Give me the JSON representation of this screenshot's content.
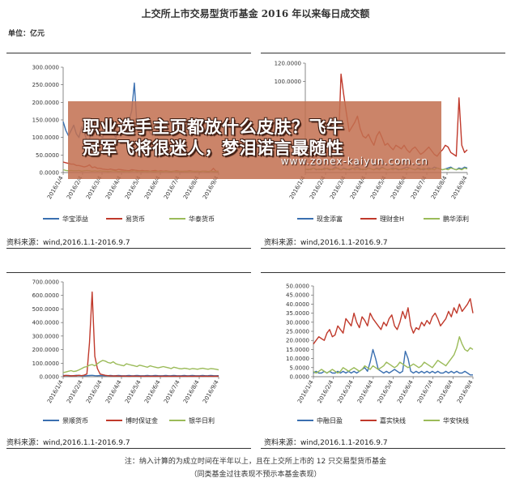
{
  "header": {
    "title": "上交所上市交易型货币基金 2016 年以来每日成交额",
    "unit": "单位：亿元"
  },
  "banner": {
    "line1": "职业选手主页都放什么皮肤？飞牛",
    "line2": "冠军飞将很迷人，梦泪诺言最随性",
    "url": "www.zonex-kaiyun.com.cn"
  },
  "source_text": "资料来源：wind,2016.1.1-2016.9.7",
  "footer": {
    "note1": "注：纳入计算的为成立时间在半年以上，且在上交所上市的 12 只交易型货币基金",
    "note2": "（同类基金过往表现不预示本基金表现）"
  },
  "colors": {
    "blue": "#3a6fb0",
    "red": "#c0392b",
    "green": "#9bbb59"
  },
  "chart_data": [
    {
      "type": "line",
      "x_ticks": [
        "2016/1/4",
        "2016/2/4",
        "2016/3/4",
        "2016/4/4",
        "2016/5/4",
        "2016/6/4",
        "2016/7/4",
        "2016/8/4",
        "2016/9/4"
      ],
      "y_ticks": [
        "0.0000",
        "50.0000",
        "100.0000",
        "150.0000",
        "200.0000",
        "250.0000",
        "300.0000"
      ],
      "ylim": [
        0,
        300
      ],
      "series": [
        {
          "name": "华宝添益",
          "color": "#3a6fb0",
          "values": [
            145,
            120,
            105,
            120,
            135,
            110,
            100,
            130,
            115,
            90,
            95,
            120,
            140,
            125,
            105,
            100,
            130,
            145,
            120,
            110,
            100,
            118,
            135,
            125,
            110,
            150,
            175,
            255,
            135,
            125,
            120,
            118,
            130,
            112,
            105,
            120,
            125,
            110,
            118,
            125,
            112,
            108,
            120,
            118,
            130,
            110,
            105,
            112,
            120,
            118,
            128,
            110,
            106,
            115,
            118,
            108,
            112,
            115,
            118,
            105
          ]
        },
        {
          "name": "易货币",
          "color": "#c0392b",
          "values": [
            30,
            28,
            26,
            24,
            24,
            20,
            20,
            18,
            16,
            18,
            22,
            14,
            16,
            12,
            12,
            10,
            9,
            8,
            10,
            8,
            7,
            9,
            8,
            7,
            6,
            5,
            8,
            7,
            6,
            5,
            6,
            5,
            5,
            4,
            5,
            6,
            4,
            5,
            4,
            5,
            4,
            3,
            4,
            5,
            4,
            3,
            4,
            4,
            5,
            4,
            3,
            4,
            3,
            4,
            4,
            3,
            4,
            12,
            4,
            3
          ]
        },
        {
          "name": "华泰货币",
          "color": "#9bbb59",
          "values": [
            8,
            6,
            5,
            6,
            5,
            5,
            6,
            4,
            5,
            6,
            5,
            4,
            5,
            4,
            5,
            4,
            4,
            3,
            4,
            5,
            4,
            3,
            4,
            3,
            4,
            3,
            4,
            5,
            3,
            4,
            3,
            4,
            3,
            4,
            3,
            3,
            4,
            3,
            3,
            4,
            3,
            3,
            4,
            3,
            3,
            4,
            3,
            3,
            4,
            3,
            4,
            3,
            3,
            4,
            3,
            3,
            4,
            3,
            3,
            4
          ]
        }
      ]
    },
    {
      "type": "line",
      "x_ticks": [
        "2016/1/4",
        "2016/2/4",
        "2016/3/4",
        "2016/4/4",
        "2016/5/4",
        "2016/6/4",
        "2016/7/4",
        "2016/8/4",
        "2016/9/4"
      ],
      "y_ticks": [
        "",
        "100.0000",
        "120.0000"
      ],
      "ylim": [
        0,
        120
      ],
      "series": [
        {
          "name": "现金添富",
          "color": "#3a6fb0",
          "values": [
            4,
            3,
            4,
            5,
            3,
            4,
            3,
            5,
            4,
            3,
            4,
            6,
            4,
            3,
            5,
            4,
            3,
            4,
            5,
            6,
            4,
            3,
            4,
            5,
            4,
            3,
            5,
            4,
            6,
            4,
            3,
            4,
            5,
            4,
            3,
            4,
            5,
            6,
            5,
            4,
            3,
            5,
            4,
            3,
            4,
            5,
            4,
            6,
            5,
            4,
            3,
            4,
            5,
            6,
            4,
            3,
            5,
            4,
            6,
            5
          ]
        },
        {
          "name": "理财金H",
          "color": "#c0392b",
          "values": [
            8,
            10,
            12,
            15,
            20,
            22,
            25,
            18,
            22,
            30,
            35,
            28,
            25,
            108,
            85,
            65,
            45,
            50,
            55,
            62,
            48,
            40,
            38,
            42,
            35,
            30,
            40,
            45,
            38,
            30,
            32,
            28,
            25,
            30,
            28,
            26,
            30,
            25,
            22,
            26,
            28,
            24,
            20,
            22,
            25,
            28,
            24,
            20,
            18,
            22,
            25,
            30,
            28,
            22,
            20,
            18,
            82,
            30,
            22,
            25
          ]
        },
        {
          "name": "鹏华添利",
          "color": "#9bbb59",
          "values": [
            3,
            4,
            3,
            5,
            4,
            3,
            4,
            3,
            5,
            4,
            3,
            4,
            5,
            3,
            4,
            3,
            4,
            5,
            3,
            4,
            3,
            4,
            3,
            5,
            4,
            3,
            4,
            3,
            5,
            4,
            3,
            4,
            3,
            5,
            4,
            3,
            4,
            3,
            5,
            4,
            3,
            4,
            3,
            5,
            4,
            3,
            4,
            3,
            5,
            4,
            3,
            4,
            3,
            5,
            4,
            3,
            4,
            3,
            5,
            4
          ]
        }
      ]
    },
    {
      "type": "line",
      "x_ticks": [
        "2016/1/4",
        "2016/2/4",
        "2016/3/4",
        "2016/4/4",
        "2016/5/4",
        "2016/6/4",
        "2016/7/4",
        "2016/8/4",
        "2016/9/4"
      ],
      "y_ticks": [
        "0.0000",
        "100.0000",
        "200.0000",
        "300.0000",
        "400.0000",
        "500.0000",
        "600.0000",
        "700.0000"
      ],
      "ylim": [
        0,
        700
      ],
      "series": [
        {
          "name": "景顺货币",
          "color": "#3a6fb0",
          "values": [
            10,
            8,
            9,
            7,
            8,
            10,
            9,
            8,
            7,
            8,
            9,
            10,
            8,
            7,
            9,
            8,
            7,
            8,
            9,
            7,
            8,
            9,
            8,
            7,
            8,
            9,
            7,
            8,
            9,
            8,
            7,
            8,
            9,
            7,
            8,
            9,
            8,
            7,
            8,
            9,
            7,
            8,
            9,
            8,
            7,
            8,
            9,
            7,
            8,
            9,
            8,
            7,
            8,
            9,
            7,
            8,
            9,
            8,
            7,
            8
          ]
        },
        {
          "name": "博时保证金",
          "color": "#c0392b",
          "values": [
            5,
            10,
            8,
            6,
            8,
            7,
            10,
            8,
            12,
            20,
            250,
            625,
            150,
            60,
            20,
            15,
            10,
            8,
            6,
            5,
            6,
            5,
            4,
            5,
            4,
            3,
            4,
            5,
            4,
            3,
            4,
            3,
            4,
            3,
            4,
            3,
            4,
            3,
            4,
            3,
            4,
            3,
            4,
            3,
            4,
            3,
            4,
            3,
            4,
            3,
            4,
            3,
            4,
            3,
            4,
            3,
            4,
            3,
            4,
            3
          ]
        },
        {
          "name": "银华日利",
          "color": "#9bbb59",
          "values": [
            30,
            35,
            40,
            45,
            38,
            42,
            50,
            60,
            70,
            75,
            85,
            90,
            80,
            95,
            110,
            120,
            115,
            105,
            100,
            110,
            95,
            90,
            85,
            80,
            95,
            90,
            85,
            80,
            75,
            85,
            80,
            75,
            70,
            80,
            75,
            70,
            65,
            70,
            75,
            70,
            65,
            60,
            70,
            65,
            60,
            58,
            62,
            60,
            55,
            60,
            58,
            55,
            60,
            62,
            58,
            55,
            60,
            58,
            55,
            50
          ]
        }
      ]
    },
    {
      "type": "line",
      "x_ticks": [
        "2016/1/4",
        "2016/2/4",
        "2016/3/4",
        "2016/4/4",
        "2016/5/4",
        "2016/6/4",
        "2016/7/4",
        "2016/8/4",
        "2016/9/4"
      ],
      "y_ticks": [
        "0.0000",
        "5.0000",
        "10.0000",
        "15.0000",
        "20.0000",
        "25.0000",
        "30.0000",
        "35.0000",
        "40.0000",
        "45.0000",
        "50.0000"
      ],
      "ylim": [
        0,
        50
      ],
      "series": [
        {
          "name": "中融日盈",
          "color": "#3a6fb0",
          "values": [
            2,
            3,
            2,
            2,
            3,
            2,
            3,
            2,
            2,
            3,
            2,
            3,
            2,
            3,
            2,
            3,
            2,
            3,
            4,
            5,
            3,
            8,
            15,
            10,
            4,
            3,
            2,
            3,
            2,
            3,
            4,
            3,
            2,
            3,
            14,
            10,
            3,
            2,
            3,
            2,
            3,
            2,
            3,
            2,
            3,
            2,
            3,
            2,
            2,
            3,
            2,
            3,
            2,
            3,
            2,
            2,
            3,
            2,
            1,
            1
          ]
        },
        {
          "name": "嘉实快线",
          "color": "#c0392b",
          "values": [
            18,
            20,
            22,
            21,
            20,
            24,
            26,
            22,
            23,
            28,
            26,
            24,
            32,
            30,
            28,
            35,
            30,
            27,
            33,
            31,
            28,
            35,
            32,
            30,
            28,
            26,
            30,
            28,
            32,
            34,
            28,
            26,
            30,
            36,
            32,
            38,
            28,
            24,
            27,
            26,
            30,
            28,
            31,
            29,
            33,
            35,
            32,
            28,
            30,
            32,
            36,
            33,
            38,
            35,
            40,
            36,
            38,
            40,
            43,
            35
          ]
        },
        {
          "name": "华安快线",
          "color": "#9bbb59",
          "values": [
            3,
            2,
            3,
            4,
            3,
            2,
            3,
            4,
            3,
            2,
            3,
            5,
            4,
            3,
            4,
            5,
            4,
            3,
            4,
            6,
            5,
            4,
            6,
            5,
            4,
            5,
            6,
            8,
            7,
            6,
            5,
            6,
            8,
            7,
            6,
            5,
            6,
            7,
            6,
            5,
            6,
            8,
            7,
            6,
            5,
            7,
            9,
            8,
            7,
            6,
            8,
            10,
            12,
            16,
            22,
            18,
            15,
            14,
            16,
            15
          ]
        }
      ]
    }
  ]
}
